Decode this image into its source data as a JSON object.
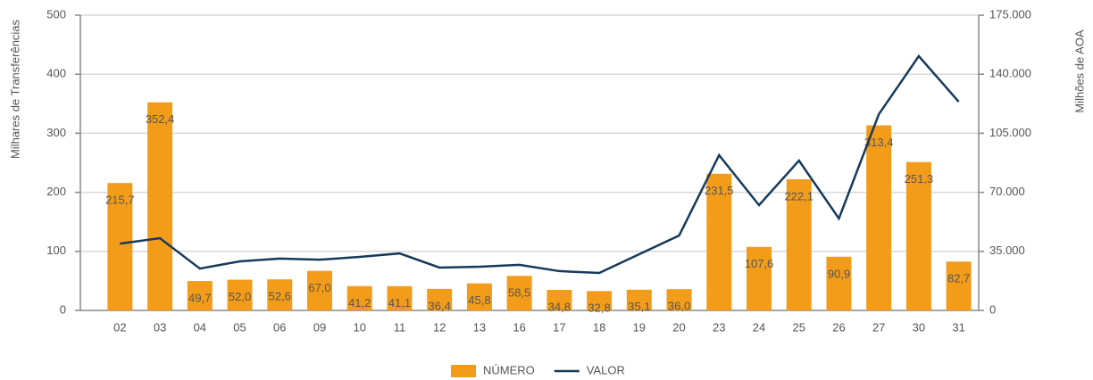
{
  "chart_data": {
    "type": "bar",
    "y_label": "Milhares de Transferências",
    "y2_label": "Milhões de AOA",
    "categories": [
      "02",
      "03",
      "04",
      "05",
      "06",
      "09",
      "10",
      "11",
      "12",
      "13",
      "16",
      "17",
      "18",
      "19",
      "20",
      "23",
      "24",
      "25",
      "26",
      "27",
      "30",
      "31"
    ],
    "series": [
      {
        "name": "NÚMERO",
        "type": "bar",
        "color": "#f39c1a",
        "values": [
          215.7,
          352.4,
          49.7,
          52.0,
          52.6,
          67.0,
          41.2,
          41.1,
          36.4,
          45.8,
          58.5,
          34.8,
          32.8,
          35.1,
          36.0,
          231.5,
          107.6,
          222.1,
          90.9,
          313.4,
          251.3,
          82.7
        ],
        "value_labels": [
          "215,7",
          "352,4",
          "49,7",
          "52,0",
          "52,6",
          "67,0",
          "41,2",
          "41,1",
          "36,4",
          "45,8",
          "58,5",
          "34,8",
          "32,8",
          "35,1",
          "36,0",
          "231,5",
          "107,6",
          "222,1",
          "90,9",
          "313,4",
          "251,3",
          "82,7"
        ]
      },
      {
        "name": "VALOR",
        "type": "line",
        "axis": "y2",
        "color": "#163a5c",
        "values": [
          39600,
          42800,
          24800,
          29100,
          30700,
          30100,
          31700,
          33800,
          25400,
          25900,
          27000,
          23300,
          22200,
          33300,
          44400,
          92000,
          62400,
          88800,
          54500,
          116300,
          150700,
          123700
        ]
      }
    ],
    "ylim": [
      0,
      500
    ],
    "yticks": [
      0,
      100,
      200,
      300,
      400,
      500
    ],
    "y2lim": [
      0,
      175000
    ],
    "y2ticks": [
      0,
      {
        "value": 35000,
        "label": "35.000"
      },
      {
        "value": 70000,
        "label": "70.000"
      },
      {
        "value": 105000,
        "label": "105.000"
      },
      {
        "value": 140000,
        "label": "140.000"
      },
      {
        "value": 175000,
        "label": "175.000"
      }
    ],
    "grid": true,
    "legend": "bottom"
  }
}
